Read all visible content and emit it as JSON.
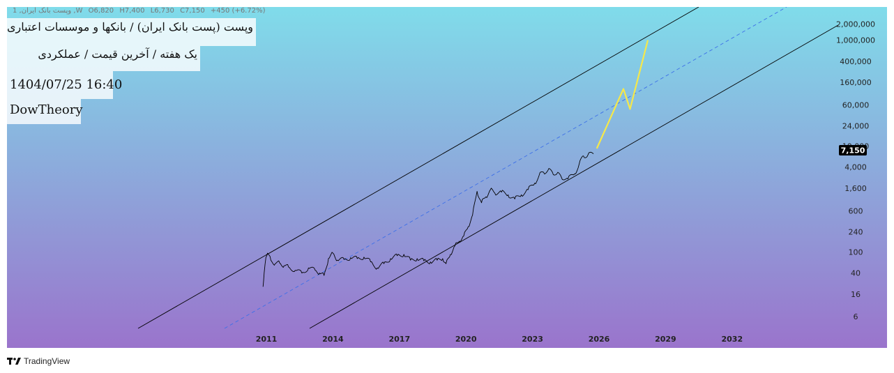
{
  "legend": {
    "ohlc": {
      "symbol": "1 ,وپست بانک ایران ,W",
      "open": "O6,820",
      "high": "H7,400",
      "low": "L6,730",
      "close": "C7,150",
      "change": "+450 (+6.72%)"
    },
    "title": "وپست (پست بانک ایران) / بانکها و موسسات اعتباری",
    "interval": "یک هفته / آخرین قیمت / عملکردی",
    "datetime": "1404/07/25 16:40",
    "author": "DowTheory"
  },
  "branding": {
    "name": "TradingView"
  },
  "colors": {
    "bg_top": "#80dcea",
    "bg_bottom": "#9a74cc",
    "price": "#000000",
    "channel": "#000000",
    "midline": "#3d6fe8",
    "projection": "#f5e84a",
    "last_price_bg": "#000000",
    "last_price_fg": "#ffffff"
  },
  "chart_data": {
    "type": "line",
    "scale": "log",
    "y_ticks": [
      "6",
      "16",
      "40",
      "100",
      "240",
      "600",
      "1,600",
      "4,000",
      "10,000",
      "24,000",
      "60,000",
      "160,000",
      "400,000",
      "1,000,000",
      "2,000,000"
    ],
    "y_tick_values": [
      6,
      16,
      40,
      100,
      240,
      600,
      1600,
      4000,
      10000,
      24000,
      60000,
      160000,
      400000,
      1000000,
      2000000
    ],
    "x_ticks": [
      "2011",
      "2014",
      "2017",
      "2020",
      "2023",
      "2026",
      "2029",
      "2032"
    ],
    "x_tick_values": [
      2011,
      2014,
      2017,
      2020,
      2023,
      2026,
      2029,
      2032
    ],
    "last_price": "7,150",
    "series": [
      {
        "role": "price",
        "x": [
          2010.85,
          2010.9,
          2010.98,
          2011.05,
          2011.2,
          2011.4,
          2011.6,
          2011.8,
          2012.0,
          2012.3,
          2012.6,
          2012.9,
          2013.2,
          2013.4,
          2013.6,
          2013.8,
          2014.0,
          2014.2,
          2014.5,
          2014.8,
          2015.1,
          2015.4,
          2015.7,
          2016.0,
          2016.3,
          2016.6,
          2016.9,
          2017.2,
          2017.5,
          2017.8,
          2018.1,
          2018.4,
          2018.7,
          2018.95,
          2019.1,
          2019.3,
          2019.5,
          2019.7,
          2019.9,
          2020.1,
          2020.3,
          2020.5,
          2020.7,
          2020.9,
          2021.1,
          2021.3,
          2021.6,
          2021.9,
          2022.2,
          2022.5,
          2022.8,
          2023.1,
          2023.3,
          2023.5,
          2023.7,
          2023.9,
          2024.1,
          2024.3,
          2024.6,
          2024.9,
          2025.1,
          2025.3,
          2025.5,
          2025.75
        ],
        "y": [
          22,
          40,
          80,
          95,
          70,
          60,
          62,
          55,
          52,
          45,
          40,
          50,
          45,
          40,
          36,
          75,
          95,
          70,
          72,
          78,
          75,
          80,
          65,
          50,
          60,
          75,
          85,
          90,
          70,
          75,
          68,
          65,
          70,
          75,
          60,
          90,
          130,
          160,
          200,
          300,
          500,
          1400,
          850,
          1100,
          1500,
          1300,
          1350,
          1200,
          1000,
          1200,
          1500,
          2000,
          2800,
          3200,
          3500,
          3200,
          3000,
          2600,
          2400,
          3000,
          4500,
          6500,
          6800,
          7150
        ]
      },
      {
        "role": "projection",
        "x": [
          2025.9,
          2027.1,
          2027.4,
          2028.2
        ],
        "y": [
          9000,
          120000,
          50000,
          1000000
        ]
      }
    ]
  }
}
